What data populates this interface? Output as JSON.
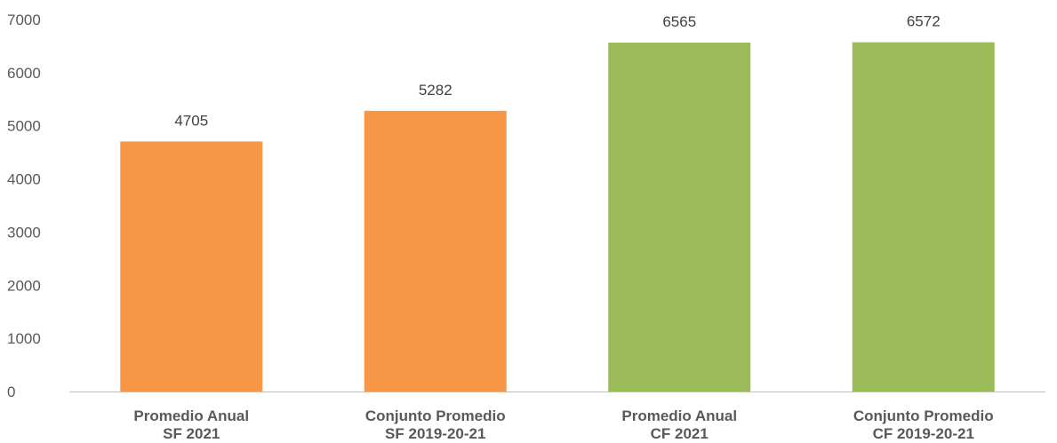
{
  "colors": {
    "orange": "#F79646",
    "green": "#9BBB59",
    "axis": "#BFBFBF"
  },
  "chart_data": {
    "type": "bar",
    "title": "",
    "xlabel": "",
    "ylabel": "",
    "ylim": [
      0,
      7000
    ],
    "yticks": [
      0,
      1000,
      2000,
      3000,
      4000,
      5000,
      6000,
      7000
    ],
    "grid": false,
    "legend": "none",
    "categories": [
      [
        "Promedio Anual",
        "SF 2021"
      ],
      [
        "Conjunto Promedio",
        "SF 2019-20-21"
      ],
      [
        "Promedio Anual",
        "CF 2021"
      ],
      [
        "Conjunto Promedio",
        "CF 2019-20-21"
      ]
    ],
    "values": [
      4705,
      5282,
      6565,
      6572
    ],
    "data_labels": [
      "4705",
      "5282",
      "6565",
      "6572"
    ],
    "bar_colors": [
      "#F79646",
      "#F79646",
      "#9BBB59",
      "#9BBB59"
    ]
  }
}
